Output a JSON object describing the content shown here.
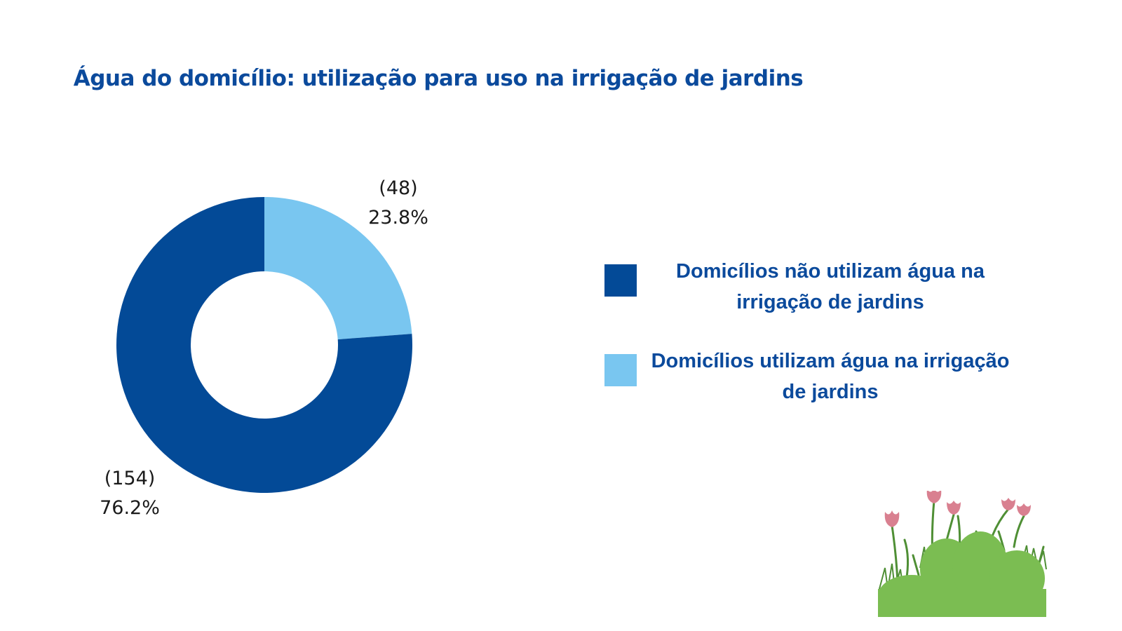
{
  "chart_data": {
    "type": "pie",
    "variant": "donut",
    "title": "Água do domicílio: utilização para uso na irrigação de jardins",
    "slices": [
      {
        "label": "Domicílios não utilizam água na irrigação de jardins",
        "count": 154,
        "count_text": "(154)",
        "percent": 76.2,
        "percent_text": "76.2%",
        "color": "#034a97"
      },
      {
        "label": "Domicílios utilizam água na irrigação de jardins",
        "count": 48,
        "count_text": "(48)",
        "percent": 23.8,
        "percent_text": "23.8%",
        "color": "#79c6f0"
      }
    ],
    "legend_position": "right"
  },
  "decoration": {
    "icon": "garden-flowers-icon",
    "colors": {
      "bush": "#7bbd52",
      "flower": "#d98090",
      "stem": "#4f8f35"
    }
  }
}
